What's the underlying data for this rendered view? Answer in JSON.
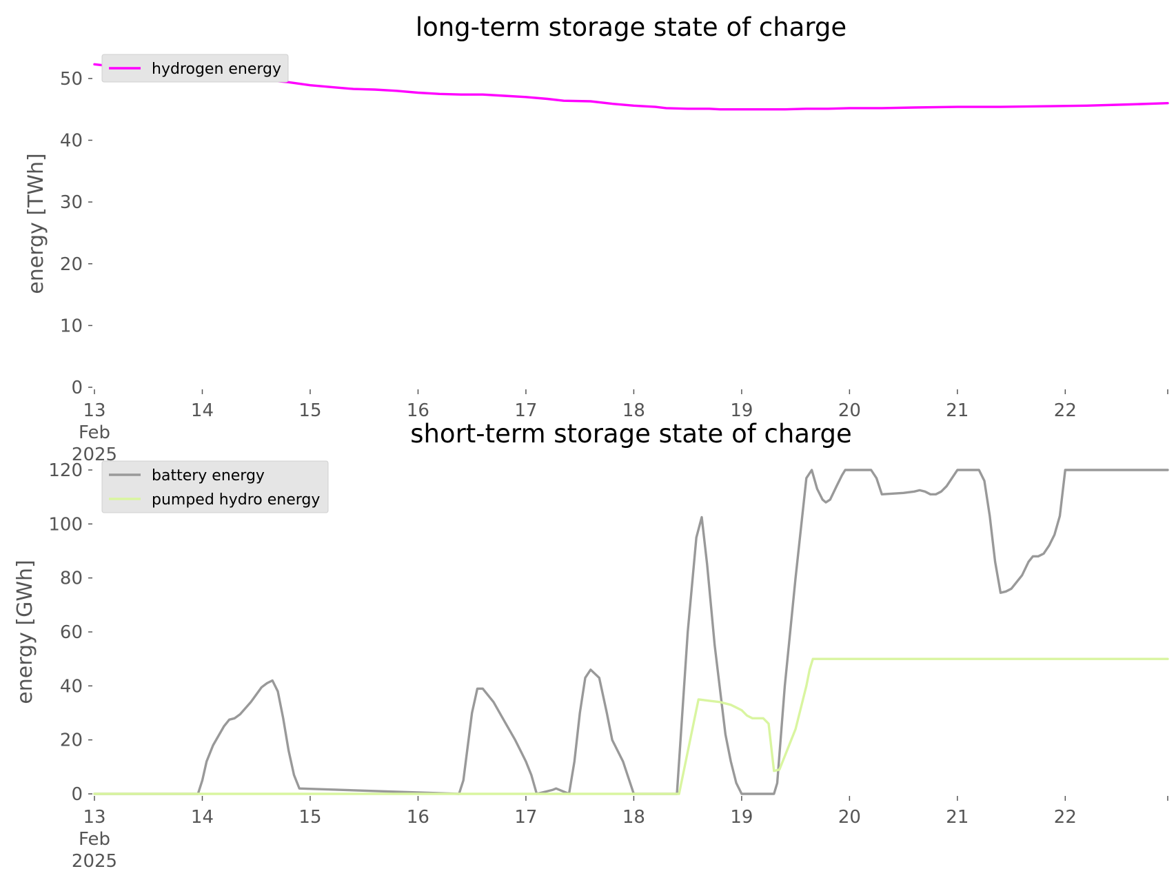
{
  "chart_data": [
    {
      "type": "line",
      "title": "long-term storage state of charge",
      "ylabel": "energy [TWh]",
      "xlabel": "",
      "xlim": [
        13,
        22.95
      ],
      "ylim": [
        0,
        53
      ],
      "x_ticks": [
        13,
        14,
        15,
        16,
        17,
        18,
        19,
        20,
        21,
        22
      ],
      "x_tick_labels": [
        "13\nFeb\n2025",
        "14",
        "15",
        "16",
        "17",
        "18",
        "19",
        "20",
        "21",
        "22"
      ],
      "y_ticks": [
        0,
        10,
        20,
        30,
        40,
        50
      ],
      "legend_position": "top-left",
      "grid": false,
      "series": [
        {
          "name": "hydrogen energy",
          "color": "#ff00ff",
          "x": [
            13.0,
            13.3,
            13.6,
            13.9,
            14.2,
            14.5,
            14.8,
            15.0,
            15.2,
            15.4,
            15.6,
            15.8,
            16.0,
            16.2,
            16.4,
            16.6,
            16.8,
            17.0,
            17.2,
            17.35,
            17.6,
            17.8,
            18.0,
            18.2,
            18.3,
            18.5,
            18.7,
            18.8,
            19.0,
            19.2,
            19.4,
            19.6,
            19.8,
            20.0,
            20.3,
            20.6,
            21.0,
            21.4,
            21.8,
            22.2,
            22.6,
            22.95
          ],
          "values": [
            52.3,
            51.7,
            51.1,
            50.6,
            50.2,
            49.9,
            49.4,
            48.9,
            48.6,
            48.3,
            48.2,
            48.0,
            47.7,
            47.5,
            47.4,
            47.4,
            47.2,
            47.0,
            46.7,
            46.4,
            46.3,
            45.9,
            45.6,
            45.4,
            45.2,
            45.1,
            45.1,
            45.0,
            45.0,
            45.0,
            45.0,
            45.1,
            45.1,
            45.2,
            45.2,
            45.3,
            45.4,
            45.4,
            45.5,
            45.6,
            45.8,
            46.0
          ]
        }
      ]
    },
    {
      "type": "line",
      "title": "short-term storage state of charge",
      "ylabel": "energy [GWh]",
      "xlabel": "",
      "xlim": [
        13,
        22.95
      ],
      "ylim": [
        0,
        120
      ],
      "x_ticks": [
        13,
        14,
        15,
        16,
        17,
        18,
        19,
        20,
        21,
        22
      ],
      "x_tick_labels": [
        "13\nFeb\n2025",
        "14",
        "15",
        "16",
        "17",
        "18",
        "19",
        "20",
        "21",
        "22"
      ],
      "y_ticks": [
        0,
        20,
        40,
        60,
        80,
        100,
        120
      ],
      "legend_position": "top-left",
      "grid": false,
      "series": [
        {
          "name": "battery energy",
          "color": "#999999",
          "x": [
            13.0,
            13.96,
            14.0,
            14.04,
            14.1,
            14.2,
            14.25,
            14.3,
            14.35,
            14.45,
            14.55,
            14.6,
            14.65,
            14.7,
            14.75,
            14.8,
            14.85,
            14.9,
            16.38,
            16.42,
            16.5,
            16.55,
            16.6,
            16.7,
            16.8,
            16.9,
            16.95,
            17.0,
            17.05,
            17.1,
            17.2,
            17.25,
            17.28,
            17.4,
            17.45,
            17.5,
            17.55,
            17.6,
            17.68,
            17.75,
            17.8,
            17.9,
            17.95,
            18.0,
            18.4,
            18.5,
            18.58,
            18.63,
            18.68,
            18.75,
            18.85,
            18.9,
            18.95,
            19.0,
            19.3,
            19.33,
            19.4,
            19.5,
            19.6,
            19.65,
            19.7,
            19.75,
            19.78,
            19.82,
            19.88,
            19.93,
            19.96,
            20.2,
            20.25,
            20.3,
            20.5,
            20.6,
            20.65,
            20.7,
            20.75,
            20.8,
            20.85,
            20.9,
            20.95,
            21.0,
            21.2,
            21.25,
            21.3,
            21.35,
            21.4,
            21.45,
            21.5,
            21.6,
            21.66,
            21.7,
            21.75,
            21.8,
            21.85,
            21.9,
            21.95,
            22.0,
            22.95
          ],
          "values": [
            0,
            0,
            5,
            12,
            18,
            25,
            27.5,
            28,
            29.5,
            34,
            39.5,
            41,
            42,
            38,
            28,
            16,
            7,
            2,
            0,
            5,
            30,
            39,
            39,
            34,
            27,
            20,
            16,
            12,
            7,
            0,
            1,
            1.5,
            2,
            0,
            12,
            30,
            43,
            46,
            43,
            30,
            20,
            12,
            6,
            0,
            0,
            60,
            95,
            102.5,
            85,
            55,
            22,
            12,
            4,
            0,
            0,
            4,
            40,
            80,
            117,
            120,
            113,
            109,
            108,
            109,
            114,
            118,
            120,
            120,
            117,
            111,
            111.5,
            112,
            112.5,
            112,
            111,
            111,
            112,
            114,
            117,
            120,
            120,
            116,
            103,
            86,
            74.5,
            75,
            76,
            81,
            86,
            88,
            88,
            89,
            92,
            96,
            103,
            120,
            120
          ]
        },
        {
          "name": "pumped hydro energy",
          "color": "#d9f5a0",
          "x": [
            13.0,
            18.42,
            18.6,
            18.7,
            18.8,
            18.9,
            18.95,
            19.0,
            19.05,
            19.1,
            19.2,
            19.25,
            19.3,
            19.35,
            19.5,
            19.6,
            19.63,
            19.66,
            22.95
          ],
          "values": [
            0,
            0,
            35,
            34.5,
            34,
            33,
            32,
            31,
            29,
            28,
            28,
            26,
            8.5,
            9,
            24,
            40,
            46,
            50,
            50
          ]
        }
      ]
    }
  ]
}
